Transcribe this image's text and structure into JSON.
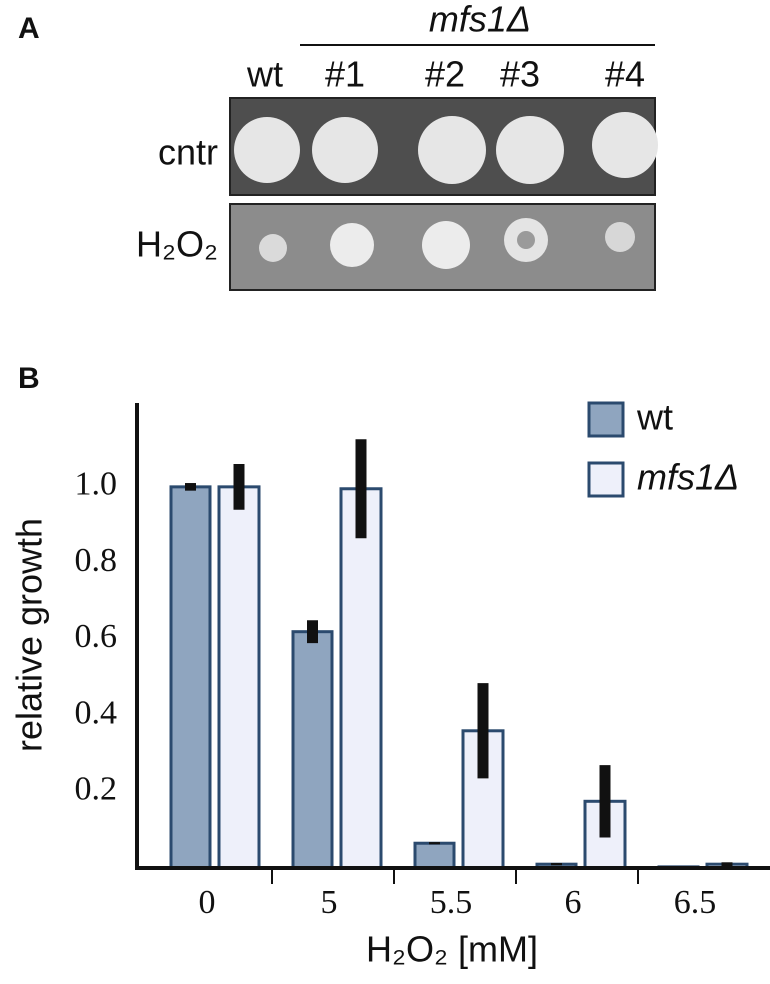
{
  "panel_a": {
    "label": "A",
    "strain_group": "mfs1Δ",
    "columns": [
      "wt",
      "#1",
      "#2",
      "#3",
      "#4"
    ],
    "rows": [
      "cntr",
      "H₂O₂"
    ]
  },
  "chart_data": {
    "type": "bar",
    "panel_label": "B",
    "y_label": "relative growth",
    "x_label": "H₂O₂ [mM]",
    "categories": [
      "0",
      "5",
      "5.5",
      "6",
      "6.5"
    ],
    "series": [
      {
        "name": "wt",
        "color": "#8fa5bf",
        "values": [
          1.0,
          0.62,
          0.065,
          0.01,
          0.003
        ],
        "errors": [
          0.01,
          0.03,
          0.003,
          0.003,
          0.002
        ]
      },
      {
        "name": "mfs1Δ",
        "color": "#eef0fa",
        "values": [
          1.0,
          0.995,
          0.36,
          0.175,
          0.01
        ],
        "errors": [
          0.06,
          0.13,
          0.125,
          0.095,
          0.005
        ]
      }
    ],
    "ylim": [
      0,
      1.22
    ],
    "yticks": [
      0.2,
      0.4,
      0.6,
      0.8,
      {
        "value": 1,
        "label": "1.0"
      }
    ],
    "grid": false,
    "legend": "top-right"
  }
}
